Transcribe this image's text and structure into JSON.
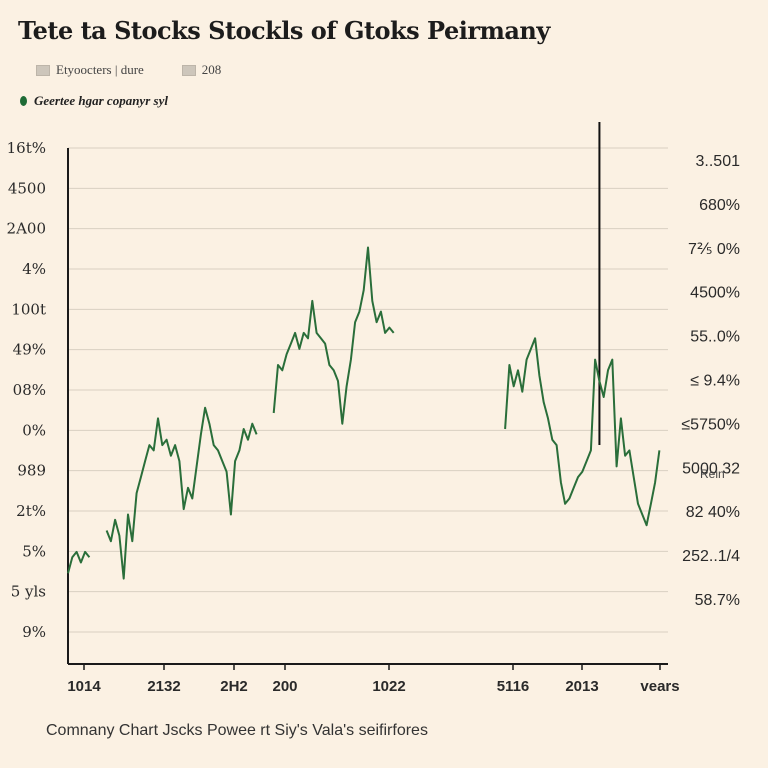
{
  "chart_data": {
    "type": "line",
    "title": "Tete ta Stocks Stockls  of Gtoks Peirmany",
    "caption": "Comnany Chart Jscks Powee rt Siy's Vala's seifirfores",
    "legend": {
      "boxes": [
        "Etyoocters | dure",
        "208"
      ],
      "series_label": "Geertee hgar copanyr syl",
      "placement": "top-left"
    },
    "y_left_ticks": [
      "16t%",
      "4500",
      "2A00",
      "4%",
      "100t",
      "49%",
      "08%",
      "0%",
      "989",
      "2t%",
      "5%",
      "5 yls",
      "9%"
    ],
    "y_right_ticks": [
      "3..501",
      "680%",
      "7⅖ 0%",
      "4500%",
      "55..0%",
      "≤ 9.4%",
      "≤5750%",
      "5000 32",
      "82  40%",
      "252..1/4",
      "58.7%"
    ],
    "y_right_note": "Rein",
    "x_ticks": [
      "1014",
      "2132",
      "2H2",
      "200",
      "1022",
      "5116",
      "2013",
      "vears"
    ],
    "grid": true,
    "colors": {
      "line": "#2a6e3a",
      "grid": "#d9d0c2",
      "axis": "#1a1a1a",
      "marker": "#111111"
    },
    "series": [
      {
        "values": [
          [
            0,
            17
          ],
          [
            1,
            20
          ],
          [
            2,
            21
          ],
          [
            3,
            19
          ],
          [
            4,
            21
          ],
          [
            5,
            20
          ],
          [
            9,
            25
          ],
          [
            10,
            23
          ],
          [
            11,
            27
          ],
          [
            12,
            24
          ],
          [
            13,
            16
          ],
          [
            14,
            28
          ],
          [
            15,
            23
          ],
          [
            16,
            32
          ],
          [
            17,
            35
          ],
          [
            18,
            38
          ],
          [
            19,
            41
          ],
          [
            20,
            40
          ],
          [
            21,
            46
          ],
          [
            22,
            41
          ],
          [
            23,
            42
          ],
          [
            24,
            39
          ],
          [
            25,
            41
          ],
          [
            26,
            38
          ],
          [
            27,
            29
          ],
          [
            28,
            33
          ],
          [
            29,
            31
          ],
          [
            30,
            37
          ],
          [
            31,
            43
          ],
          [
            32,
            48
          ],
          [
            33,
            45
          ],
          [
            34,
            41
          ],
          [
            35,
            40
          ],
          [
            36,
            38
          ],
          [
            37,
            36
          ],
          [
            38,
            28
          ],
          [
            39,
            38
          ],
          [
            40,
            40
          ],
          [
            41,
            44
          ],
          [
            42,
            42
          ],
          [
            43,
            45
          ],
          [
            44,
            43
          ],
          [
            48,
            47
          ],
          [
            49,
            56
          ],
          [
            50,
            55
          ],
          [
            51,
            58
          ],
          [
            52,
            60
          ],
          [
            53,
            62
          ],
          [
            54,
            59
          ],
          [
            55,
            62
          ],
          [
            56,
            61
          ],
          [
            57,
            68
          ],
          [
            58,
            62
          ],
          [
            59,
            61
          ],
          [
            60,
            60
          ],
          [
            61,
            56
          ],
          [
            62,
            55
          ],
          [
            63,
            53
          ],
          [
            64,
            45
          ],
          [
            65,
            52
          ],
          [
            66,
            57
          ],
          [
            67,
            64
          ],
          [
            68,
            66
          ],
          [
            69,
            70
          ],
          [
            70,
            78
          ],
          [
            71,
            68
          ],
          [
            72,
            64
          ],
          [
            73,
            66
          ],
          [
            74,
            62
          ],
          [
            75,
            63
          ],
          [
            76,
            62
          ],
          [
            102,
            44
          ],
          [
            103,
            56
          ],
          [
            104,
            52
          ],
          [
            105,
            55
          ],
          [
            106,
            51
          ],
          [
            107,
            57
          ],
          [
            108,
            59
          ],
          [
            109,
            61
          ],
          [
            110,
            54
          ],
          [
            111,
            49
          ],
          [
            112,
            46
          ],
          [
            113,
            42
          ],
          [
            114,
            41
          ],
          [
            115,
            34
          ],
          [
            116,
            30
          ],
          [
            117,
            31
          ],
          [
            118,
            33
          ],
          [
            119,
            35
          ],
          [
            120,
            36
          ],
          [
            121,
            38
          ],
          [
            122,
            40
          ],
          [
            123,
            57
          ],
          [
            124,
            53
          ],
          [
            125,
            50
          ],
          [
            126,
            55
          ],
          [
            127,
            57
          ],
          [
            128,
            37
          ],
          [
            129,
            46
          ],
          [
            130,
            39
          ],
          [
            131,
            40
          ],
          [
            132,
            35
          ],
          [
            133,
            30
          ],
          [
            134,
            28
          ],
          [
            135,
            26
          ],
          [
            136,
            30
          ],
          [
            137,
            34
          ],
          [
            138,
            40
          ]
        ]
      }
    ],
    "xlim": [
      0,
      140
    ],
    "ylim": [
      0,
      100
    ],
    "marker_x": 124
  }
}
